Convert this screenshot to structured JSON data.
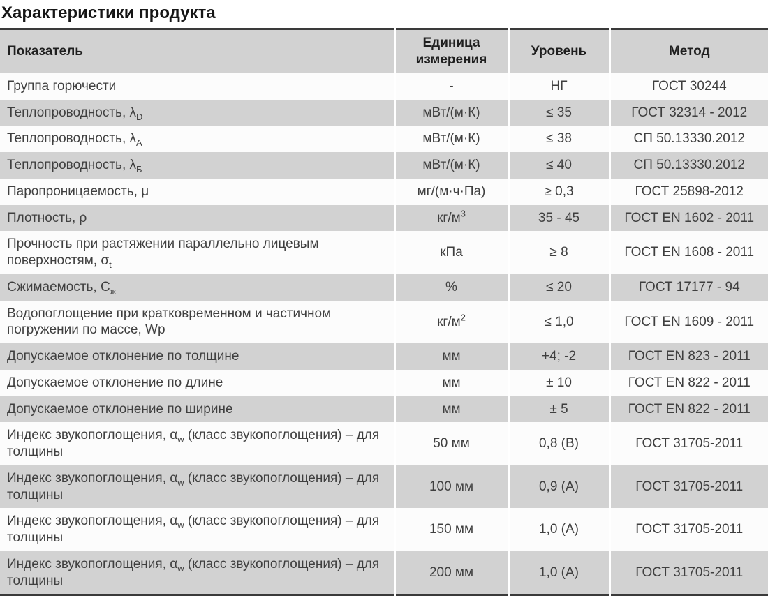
{
  "page": {
    "title": "Характеристики продукта"
  },
  "table": {
    "columns": [
      {
        "key": "indicator",
        "label": "Показатель"
      },
      {
        "key": "unit",
        "label": "Единица измерения"
      },
      {
        "key": "level",
        "label": "Уровень"
      },
      {
        "key": "method",
        "label": "Метод"
      }
    ],
    "rows": [
      {
        "indicator": "Группа горючести",
        "unit": "-",
        "level": "НГ",
        "method": "ГОСТ 30244"
      },
      {
        "indicator": "Теплопроводность, λ~D~",
        "unit": "мВт/(м·К)",
        "level": "≤ 35",
        "method": "ГОСТ 32314 - 2012"
      },
      {
        "indicator": "Теплопроводность, λ~А~",
        "unit": "мВт/(м·К)",
        "level": "≤ 38",
        "method": "СП 50.13330.2012"
      },
      {
        "indicator": "Теплопроводность, λ~Б~",
        "unit": "мВт/(м·К)",
        "level": "≤ 40",
        "method": "СП 50.13330.2012"
      },
      {
        "indicator": "Паропроницаемость, μ",
        "unit": "мг/(м·ч·Па)",
        "level": "≥ 0,3",
        "method": "ГОСТ 25898-2012"
      },
      {
        "indicator": "Плотность, ρ",
        "unit": "кг/м^3^",
        "level": "35 - 45",
        "method": "ГОСТ EN 1602 - 2011"
      },
      {
        "indicator": "Прочность при растяжении параллельно лицевым поверхностям, σ~t~",
        "unit": "кПа",
        "level": "≥ 8",
        "method": "ГОСТ EN 1608 - 2011"
      },
      {
        "indicator": "Сжимаемость, С~ж~",
        "unit": "%",
        "level": "≤ 20",
        "method": "ГОСТ 17177 - 94"
      },
      {
        "indicator": "Водопоглощение при кратковременном и частичном погружении по массе, Wp",
        "unit": "кг/м^2^",
        "level": "≤ 1,0",
        "method": "ГОСТ EN 1609 - 2011"
      },
      {
        "indicator": "Допускаемое отклонение по толщине",
        "unit": "мм",
        "level": "+4; -2",
        "method": "ГОСТ EN 823 - 2011"
      },
      {
        "indicator": "Допускаемое отклонение по длине",
        "unit": "мм",
        "level": "± 10",
        "method": "ГОСТ EN 822 - 2011"
      },
      {
        "indicator": "Допускаемое отклонение по ширине",
        "unit": "мм",
        "level": "± 5",
        "method": "ГОСТ EN 822 - 2011"
      },
      {
        "indicator": "Индекс звукопоглощения, α~w~ (класс звукопоглощения) – для толщины",
        "unit": "50 мм",
        "level": "0,8 (В)",
        "method": "ГОСТ 31705-2011"
      },
      {
        "indicator": "Индекс звукопоглощения, α~w~ (класс звукопоглощения) – для толщины",
        "unit": "100 мм",
        "level": "0,9 (А)",
        "method": "ГОСТ 31705-2011"
      },
      {
        "indicator": "Индекс звукопоглощения, α~w~ (класс звукопоглощения) – для толщины",
        "unit": "150 мм",
        "level": "1,0 (А)",
        "method": "ГОСТ 31705-2011"
      },
      {
        "indicator": "Индекс звукопоглощения, α~w~ (класс звукопоглощения) – для толщины",
        "unit": "200 мм",
        "level": "1,0 (А)",
        "method": "ГОСТ 31705-2011"
      }
    ]
  }
}
